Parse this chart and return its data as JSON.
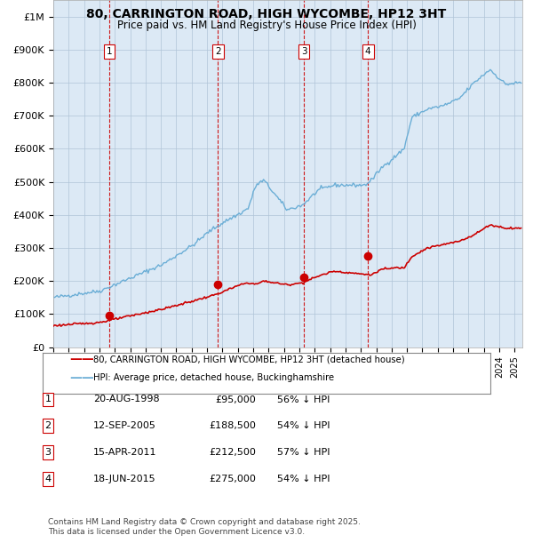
{
  "title_line1": "80, CARRINGTON ROAD, HIGH WYCOMBE, HP12 3HT",
  "title_line2": "Price paid vs. HM Land Registry's House Price Index (HPI)",
  "background_color": "#dce9f5",
  "plot_bg_color": "#dce9f5",
  "ylim": [
    0,
    1050000
  ],
  "yticks": [
    0,
    100000,
    200000,
    300000,
    400000,
    500000,
    600000,
    700000,
    800000,
    900000,
    1000000
  ],
  "ytick_labels": [
    "£0",
    "£100K",
    "£200K",
    "£300K",
    "£400K",
    "£500K",
    "£600K",
    "£700K",
    "£800K",
    "£900K",
    "£1M"
  ],
  "x_start_year": 1995,
  "x_end_year": 2025,
  "hpi_color": "#6baed6",
  "price_color": "#cc0000",
  "sale_marker_color": "#cc0000",
  "vline_color": "#cc0000",
  "grid_color": "#b0c4d8",
  "sales": [
    {
      "date_num": 1998.64,
      "price": 95000,
      "label": "1"
    },
    {
      "date_num": 2005.7,
      "price": 188500,
      "label": "2"
    },
    {
      "date_num": 2011.29,
      "price": 212500,
      "label": "3"
    },
    {
      "date_num": 2015.46,
      "price": 275000,
      "label": "4"
    }
  ],
  "legend_label_price": "80, CARRINGTON ROAD, HIGH WYCOMBE, HP12 3HT (detached house)",
  "legend_label_hpi": "HPI: Average price, detached house, Buckinghamshire",
  "table_rows": [
    [
      "1",
      "20-AUG-1998",
      "£95,000",
      "56% ↓ HPI"
    ],
    [
      "2",
      "12-SEP-2005",
      "£188,500",
      "54% ↓ HPI"
    ],
    [
      "3",
      "15-APR-2011",
      "£212,500",
      "57% ↓ HPI"
    ],
    [
      "4",
      "18-JUN-2015",
      "£275,000",
      "54% ↓ HPI"
    ]
  ],
  "footer_text": "Contains HM Land Registry data © Crown copyright and database right 2025.\nThis data is licensed under the Open Government Licence v3.0."
}
